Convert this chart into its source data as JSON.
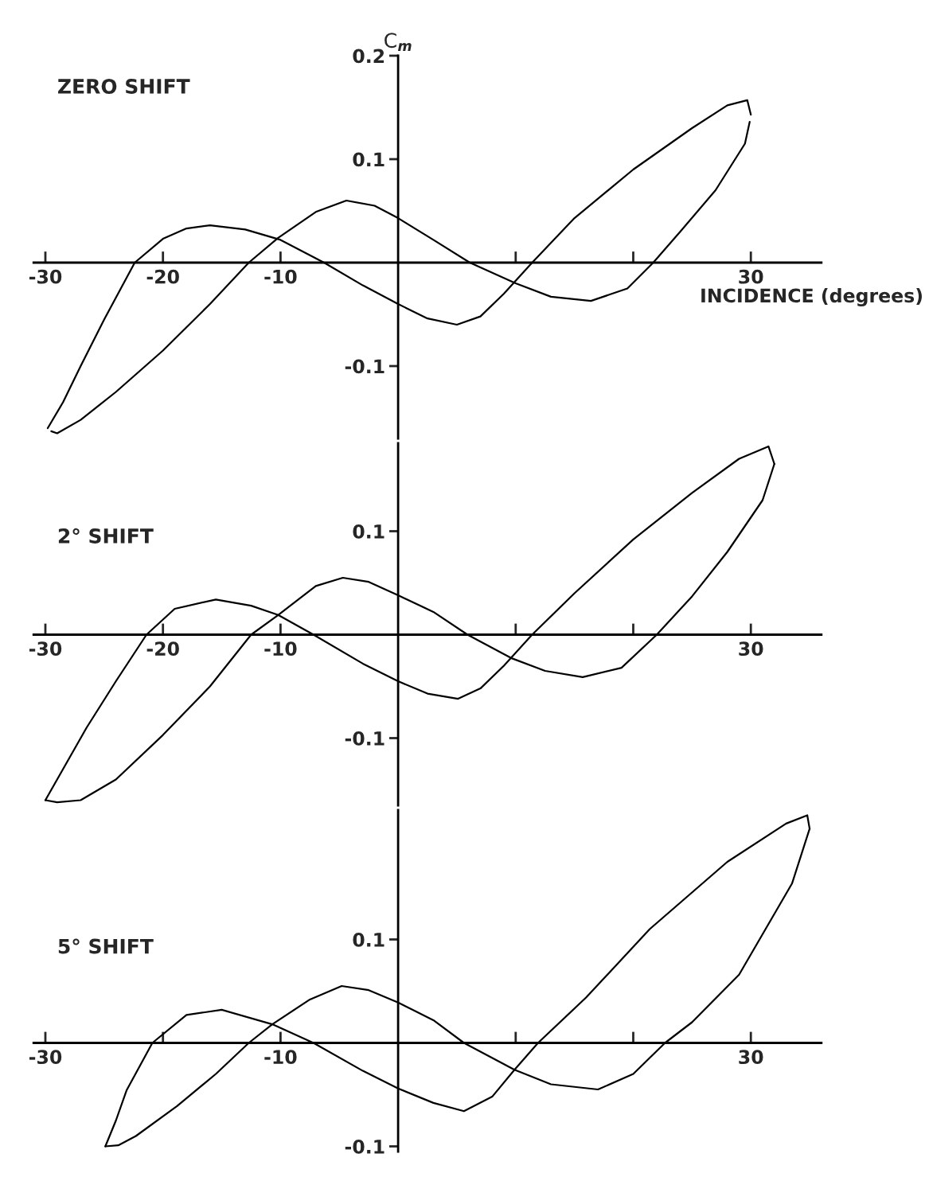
{
  "chart_data": [
    {
      "type": "line",
      "title": "ZERO SHIFT",
      "xlabel": "INCIDENCE (degrees)",
      "ylabel": "C$_{m}$",
      "series": [
        {
          "color": "#000000",
          "x": [
            -29.8,
            -28.5,
            -27,
            -25,
            -22.4,
            -20,
            -18,
            -16,
            -13,
            -10,
            -6.3,
            -3,
            0,
            2.5,
            5,
            7,
            9,
            11.4,
            15,
            20,
            25,
            28,
            29.7,
            30
          ],
          "values": [
            -0.16,
            -0.135,
            -0.1,
            -0.055,
            0,
            0.023,
            0.033,
            0.036,
            0.032,
            0.022,
            0,
            -0.022,
            -0.04,
            -0.054,
            -0.06,
            -0.052,
            -0.03,
            0,
            0.043,
            0.09,
            0.13,
            0.152,
            0.157,
            0.143
          ]
        },
        {
          "color": "#000000",
          "x": [
            -29.5,
            -29,
            -27,
            -24,
            -20,
            -16,
            -12.7,
            -10.2,
            -7,
            -4.4,
            -2,
            0,
            3,
            6.1,
            10,
            13,
            16.4,
            19.5,
            21.7,
            24,
            27,
            29.5,
            29.9
          ],
          "values": [
            -0.163,
            -0.165,
            -0.152,
            -0.125,
            -0.085,
            -0.04,
            0,
            0.024,
            0.049,
            0.06,
            0.055,
            0.043,
            0.022,
            0,
            -0.02,
            -0.033,
            -0.037,
            -0.025,
            0,
            0.03,
            0.07,
            0.115,
            0.136
          ]
        }
      ],
      "xlim": [
        -31,
        36
      ],
      "ylim": [
        -0.17,
        0.2
      ],
      "xticks": [
        -30,
        -20,
        -10,
        {
          "value": 10,
          "label": null
        },
        {
          "value": 20,
          "label": null
        },
        30
      ],
      "yticks": [
        0.2,
        0.1,
        -0.1
      ]
    },
    {
      "type": "line",
      "title": "2° SHIFT",
      "series": [
        {
          "color": "#000000",
          "x": [
            -30,
            -28.5,
            -26.5,
            -24,
            -21.4,
            -19,
            -15.5,
            -12.5,
            -10.2,
            -7.2,
            -3,
            0,
            2.5,
            5.1,
            7,
            9,
            11.4,
            15,
            20,
            25,
            29,
            31.5,
            32
          ],
          "values": [
            -0.16,
            -0.13,
            -0.09,
            -0.045,
            0,
            0.025,
            0.034,
            0.028,
            0.019,
            0,
            -0.028,
            -0.045,
            -0.057,
            -0.062,
            -0.052,
            -0.03,
            0,
            0.04,
            0.092,
            0.137,
            0.17,
            0.182,
            0.165
          ]
        },
        {
          "color": "#000000",
          "x": [
            -30,
            -29,
            -27,
            -24,
            -20,
            -16,
            -12.5,
            -10.2,
            -7,
            -4.7,
            -2.5,
            0,
            3,
            5.9,
            9.7,
            12.5,
            15.7,
            19,
            22,
            25,
            28,
            31,
            32
          ],
          "values": [
            -0.16,
            -0.162,
            -0.16,
            -0.14,
            -0.097,
            -0.05,
            0,
            0.019,
            0.047,
            0.055,
            0.051,
            0.038,
            0.022,
            0,
            -0.023,
            -0.035,
            -0.041,
            -0.032,
            0,
            0.037,
            0.08,
            0.13,
            0.165
          ]
        }
      ],
      "xlim": [
        -31,
        36
      ],
      "ylim": [
        -0.165,
        0.185
      ],
      "xticks": [
        -30,
        -20,
        -10,
        {
          "value": 10,
          "label": null
        },
        {
          "value": 20,
          "label": null
        },
        30
      ],
      "yticks": [
        0.1,
        -0.1
      ]
    },
    {
      "type": "line",
      "title": "5° SHIFT",
      "series": [
        {
          "color": "#000000",
          "x": [
            -24.9,
            -24,
            -23.1,
            -20.9,
            -18,
            -15,
            -10.7,
            -7.2,
            -3,
            0,
            3,
            5.6,
            8,
            9.9,
            11.9,
            16,
            21.4,
            28,
            33,
            34.8,
            35
          ],
          "values": [
            -0.1,
            -0.075,
            -0.046,
            0,
            0.027,
            0.032,
            0.018,
            0,
            -0.027,
            -0.044,
            -0.058,
            -0.066,
            -0.052,
            -0.026,
            0,
            0.044,
            0.11,
            0.175,
            0.212,
            0.22,
            0.207
          ]
        },
        {
          "color": "#000000",
          "x": [
            -24.9,
            -23.8,
            -22.3,
            -18.8,
            -15.5,
            -12.7,
            -10.7,
            -7.5,
            -4.8,
            -2.5,
            0,
            3,
            5.6,
            9.9,
            13,
            17,
            20,
            22.7,
            25,
            29,
            33.5,
            35
          ],
          "values": [
            -0.1,
            -0.099,
            -0.09,
            -0.061,
            -0.03,
            0,
            0.018,
            0.042,
            0.055,
            0.051,
            0.039,
            0.022,
            0,
            -0.026,
            -0.04,
            -0.045,
            -0.03,
            0,
            0.02,
            0.066,
            0.154,
            0.207
          ]
        }
      ],
      "xlim": [
        -31,
        36
      ],
      "ylim": [
        -0.105,
        0.225
      ],
      "xticks": [
        -30,
        {
          "value": -20,
          "label": null
        },
        -10,
        {
          "value": 10,
          "label": null
        },
        {
          "value": 20,
          "label": null
        },
        30
      ],
      "yticks": [
        0.1,
        -0.1
      ]
    }
  ]
}
